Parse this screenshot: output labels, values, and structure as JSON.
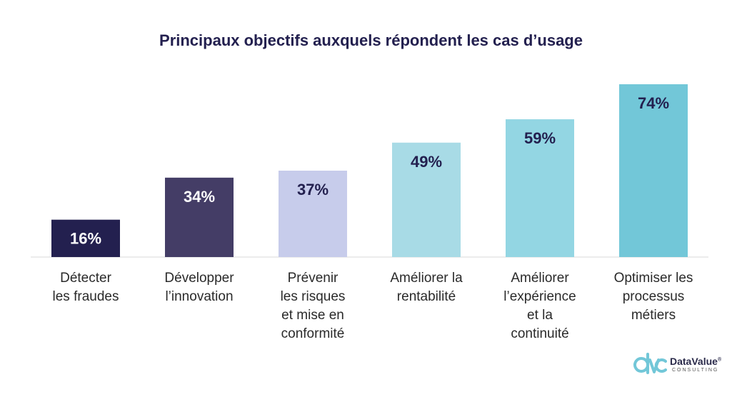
{
  "chart_data": {
    "type": "bar",
    "title": "Principaux objectifs auxquels répondent les cas d’usage",
    "categories": [
      [
        "Détecter",
        "les fraudes"
      ],
      [
        "Développer",
        "l’innovation"
      ],
      [
        "Prévenir",
        "les risques",
        "et mise en",
        "conformité"
      ],
      [
        "Améliorer la",
        "rentabilité"
      ],
      [
        "Améliorer",
        "l’expérience",
        "et la",
        "continuité"
      ],
      [
        "Optimiser les",
        "processus",
        "métiers"
      ]
    ],
    "values": [
      16,
      34,
      37,
      49,
      59,
      74
    ],
    "data_labels": [
      "16%",
      "34%",
      "37%",
      "49%",
      "59%",
      "74%"
    ],
    "unit": "%",
    "bar_colors": [
      "#23204f",
      "#443d66",
      "#c7cceb",
      "#a8dbe6",
      "#93d6e3",
      "#72c7d8"
    ],
    "label_colors": [
      "#ffffff",
      "#ffffff",
      "#23204f",
      "#23204f",
      "#23204f",
      "#23204f"
    ],
    "ylim": [
      0,
      74
    ],
    "grid": false,
    "legend": "none"
  },
  "logo": {
    "name": "DataValue",
    "registered": "®",
    "subtitle": "CONSULTING",
    "mark_color": "#72c7d8"
  }
}
